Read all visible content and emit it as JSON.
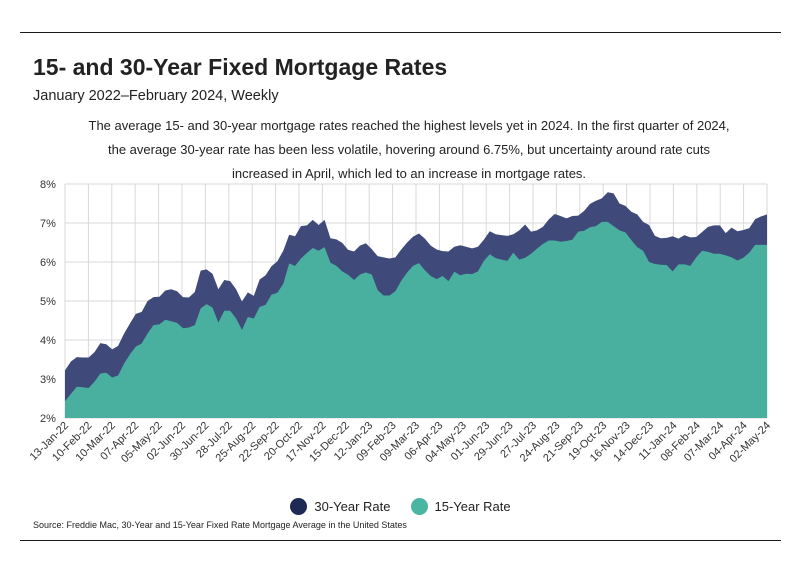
{
  "header": {
    "title": "15- and 30-Year Fixed Mortgage Rates",
    "subtitle": "January 2022–February 2024, Weekly",
    "description": "The average 15- and 30-year mortgage rates reached the highest levels yet in 2024. In the first quarter of 2024, the average 30-year rate has been less volatile, hovering around 6.75%, but uncertainty around rate cuts increased in April, which led to an increase in mortgage rates."
  },
  "legend": [
    {
      "label": "30-Year Rate",
      "color": "#1f2a54"
    },
    {
      "label": "15-Year Rate",
      "color": "#4ab5a2"
    }
  ],
  "source": "Source:  Freddie Mac, 30-Year  and 15-Year Fixed Rate Mortgage Average in the United States",
  "chart_data": {
    "type": "area",
    "title": "15- and 30-Year Fixed Mortgage Rates",
    "ylim": [
      2,
      8
    ],
    "y_ticks": [
      "2%",
      "3%",
      "4%",
      "5%",
      "6%",
      "7%",
      "8%"
    ],
    "grid": true,
    "legend_position": "bottom",
    "x_ticks": [
      "13-Jan-22",
      "10-Feb-22",
      "10-Mar-22",
      "07-Apr-22",
      "05-May-22",
      "02-Jun-22",
      "30-Jun-22",
      "28-Jul-22",
      "25-Aug-22",
      "22-Sep-22",
      "20-Oct-22",
      "17-Nov-22",
      "15-Dec-22",
      "12-Jan-23",
      "09-Feb-23",
      "09-Mar-23",
      "06-Apr-23",
      "04-May-23",
      "01-Jun-23",
      "29-Jun-23",
      "27-Jul-23",
      "24-Aug-23",
      "21-Sep-23",
      "19-Oct-23",
      "16-Nov-23",
      "14-Dec-23",
      "11-Jan-24",
      "08-Feb-24",
      "07-Mar-24",
      "04-Apr-24",
      "02-May-24"
    ],
    "series": [
      {
        "name": "30-Year Rate",
        "color": "#3f4a7a",
        "values": [
          3.22,
          3.45,
          3.56,
          3.55,
          3.55,
          3.69,
          3.92,
          3.89,
          3.76,
          3.85,
          4.16,
          4.42,
          4.67,
          4.72,
          5.0,
          5.1,
          5.11,
          5.27,
          5.3,
          5.25,
          5.1,
          5.09,
          5.23,
          5.78,
          5.81,
          5.7,
          5.3,
          5.54,
          5.51,
          5.3,
          4.99,
          5.22,
          5.13,
          5.55,
          5.66,
          5.89,
          6.02,
          6.29,
          6.7,
          6.66,
          6.92,
          6.94,
          7.08,
          6.95,
          7.08,
          6.61,
          6.58,
          6.49,
          6.31,
          6.27,
          6.42,
          6.48,
          6.33,
          6.15,
          6.12,
          6.09,
          6.12,
          6.32,
          6.5,
          6.65,
          6.73,
          6.6,
          6.42,
          6.32,
          6.28,
          6.27,
          6.39,
          6.43,
          6.39,
          6.35,
          6.39,
          6.57,
          6.79,
          6.71,
          6.69,
          6.67,
          6.71,
          6.81,
          6.96,
          6.78,
          6.81,
          6.9,
          7.09,
          7.23,
          7.18,
          7.12,
          7.18,
          7.19,
          7.31,
          7.49,
          7.57,
          7.63,
          7.79,
          7.76,
          7.5,
          7.44,
          7.29,
          7.22,
          7.03,
          6.95,
          6.67,
          6.61,
          6.62,
          6.66,
          6.6,
          6.69,
          6.63,
          6.64,
          6.77,
          6.9,
          6.94,
          6.94,
          6.74,
          6.88,
          6.79,
          6.82,
          6.87,
          7.1,
          7.17,
          7.22
        ]
      },
      {
        "name": "15-Year Rate",
        "color": "#4ab5a2",
        "values": [
          2.43,
          2.62,
          2.8,
          2.79,
          2.77,
          2.93,
          3.14,
          3.16,
          3.04,
          3.09,
          3.39,
          3.63,
          3.83,
          3.91,
          4.17,
          4.38,
          4.4,
          4.52,
          4.48,
          4.44,
          4.3,
          4.32,
          4.38,
          4.81,
          4.92,
          4.83,
          4.45,
          4.75,
          4.75,
          4.55,
          4.26,
          4.59,
          4.55,
          4.85,
          4.9,
          5.16,
          5.21,
          5.44,
          5.96,
          5.9,
          6.09,
          6.23,
          6.36,
          6.29,
          6.38,
          5.98,
          5.9,
          5.76,
          5.67,
          5.54,
          5.68,
          5.73,
          5.68,
          5.28,
          5.14,
          5.14,
          5.25,
          5.52,
          5.73,
          5.9,
          5.97,
          5.79,
          5.64,
          5.56,
          5.64,
          5.51,
          5.75,
          5.66,
          5.7,
          5.69,
          5.76,
          6.03,
          6.2,
          6.1,
          6.06,
          6.03,
          6.24,
          6.06,
          6.11,
          6.21,
          6.34,
          6.46,
          6.55,
          6.55,
          6.52,
          6.54,
          6.57,
          6.78,
          6.8,
          6.89,
          6.92,
          7.03,
          7.03,
          6.92,
          6.81,
          6.76,
          6.56,
          6.38,
          6.29,
          6.0,
          5.95,
          5.93,
          5.92,
          5.76,
          5.94,
          5.94,
          5.9,
          6.12,
          6.29,
          6.26,
          6.21,
          6.21,
          6.17,
          6.12,
          6.04,
          6.11,
          6.24,
          6.44,
          6.44,
          6.44
        ]
      }
    ]
  }
}
